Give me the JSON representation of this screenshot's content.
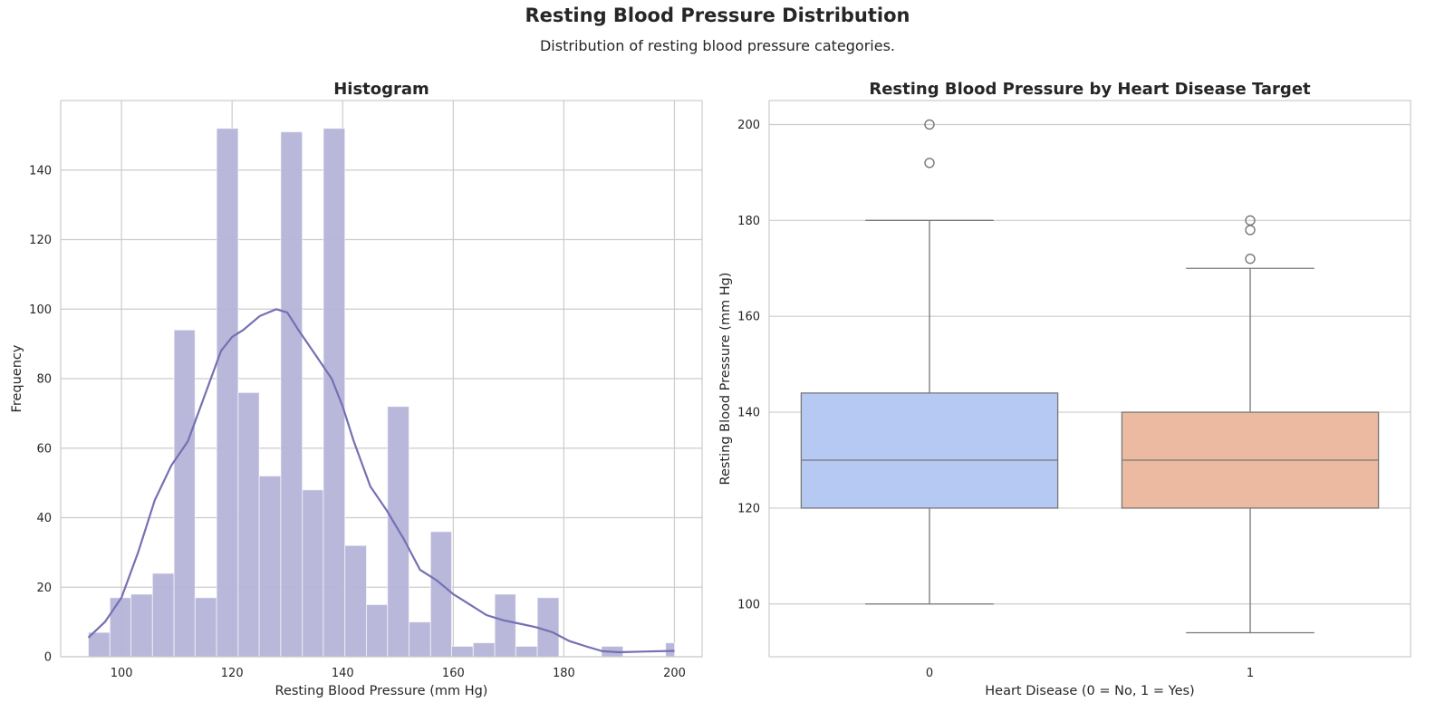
{
  "figure": {
    "title": "Resting Blood Pressure Distribution",
    "subtitle": "Distribution of resting blood pressure categories."
  },
  "colors": {
    "hist_bar": "#b5b4d8",
    "kde_line": "#7570b3",
    "box_0": "#b5c9f3",
    "box_1": "#ecbaa0",
    "box_edge": "#777777",
    "grid": "#cccccc",
    "spine": "#cccccc"
  },
  "chart_data": [
    {
      "type": "bar",
      "subtype": "histogram",
      "title": "Histogram",
      "xlabel": "Resting Blood Pressure (mm Hg)",
      "ylabel": "Frequency",
      "xlim": [
        89,
        205
      ],
      "ylim": [
        0,
        160
      ],
      "xticks": [
        100,
        120,
        140,
        160,
        180,
        200
      ],
      "yticks": [
        0,
        20,
        40,
        60,
        80,
        100,
        120,
        140
      ],
      "grid": true,
      "bins": [
        {
          "x0": 94,
          "x1": 97.9,
          "count": 7
        },
        {
          "x0": 97.9,
          "x1": 101.7,
          "count": 17
        },
        {
          "x0": 101.7,
          "x1": 105.6,
          "count": 18
        },
        {
          "x0": 105.6,
          "x1": 109.5,
          "count": 24
        },
        {
          "x0": 109.5,
          "x1": 113.3,
          "count": 94
        },
        {
          "x0": 113.3,
          "x1": 117.2,
          "count": 17
        },
        {
          "x0": 117.2,
          "x1": 121.1,
          "count": 152
        },
        {
          "x0": 121.1,
          "x1": 124.9,
          "count": 76
        },
        {
          "x0": 124.9,
          "x1": 128.8,
          "count": 52
        },
        {
          "x0": 128.8,
          "x1": 132.7,
          "count": 151
        },
        {
          "x0": 132.7,
          "x1": 136.5,
          "count": 48
        },
        {
          "x0": 136.5,
          "x1": 140.4,
          "count": 152
        },
        {
          "x0": 140.4,
          "x1": 144.3,
          "count": 32
        },
        {
          "x0": 144.3,
          "x1": 148.1,
          "count": 15
        },
        {
          "x0": 148.1,
          "x1": 152.0,
          "count": 72
        },
        {
          "x0": 152.0,
          "x1": 155.9,
          "count": 10
        },
        {
          "x0": 155.9,
          "x1": 159.7,
          "count": 36
        },
        {
          "x0": 159.7,
          "x1": 163.6,
          "count": 3
        },
        {
          "x0": 163.6,
          "x1": 167.5,
          "count": 4
        },
        {
          "x0": 167.5,
          "x1": 171.3,
          "count": 18
        },
        {
          "x0": 171.3,
          "x1": 175.2,
          "count": 3
        },
        {
          "x0": 175.2,
          "x1": 179.1,
          "count": 17
        },
        {
          "x0": 179.1,
          "x1": 182.9,
          "count": 0
        },
        {
          "x0": 182.9,
          "x1": 186.8,
          "count": 0
        },
        {
          "x0": 186.8,
          "x1": 190.7,
          "count": 3
        },
        {
          "x0": 190.7,
          "x1": 194.5,
          "count": 0
        },
        {
          "x0": 194.5,
          "x1": 198.4,
          "count": 0
        },
        {
          "x0": 198.4,
          "x1": 200,
          "count": 4
        }
      ],
      "kde": {
        "x": [
          94,
          97,
          100,
          103,
          106,
          109,
          112,
          115,
          118,
          120,
          122,
          125,
          128,
          130,
          132,
          135,
          138,
          140,
          142,
          145,
          148,
          151,
          154,
          157,
          160,
          163,
          166,
          169,
          172,
          175,
          178,
          181,
          184,
          187,
          190,
          195,
          200
        ],
        "y": [
          5.5,
          10,
          17,
          30,
          45,
          55,
          62,
          75,
          88,
          92,
          94,
          98,
          100,
          99,
          94,
          87,
          80,
          72,
          62,
          49,
          42,
          34,
          25,
          22,
          18,
          15,
          12,
          10.5,
          9.5,
          8.5,
          7,
          4.5,
          3,
          1.6,
          1.3,
          1.5,
          1.7
        ]
      }
    },
    {
      "type": "box",
      "title": "Resting Blood Pressure by Heart Disease Target",
      "xlabel": "Heart Disease (0 = No, 1 = Yes)",
      "ylabel": "Resting Blood Pressure (mm Hg)",
      "ylim": [
        89,
        205
      ],
      "yticks": [
        100,
        120,
        140,
        160,
        180,
        200
      ],
      "grid": true,
      "categories": [
        "0",
        "1"
      ],
      "boxes": [
        {
          "category": "0",
          "whisker_low": 100,
          "q1": 120,
          "median": 130,
          "q3": 144,
          "whisker_high": 180,
          "outliers": [
            192,
            200
          ]
        },
        {
          "category": "1",
          "whisker_low": 94,
          "q1": 120,
          "median": 130,
          "q3": 140,
          "whisker_high": 170,
          "outliers": [
            172,
            178,
            180
          ]
        }
      ]
    }
  ]
}
